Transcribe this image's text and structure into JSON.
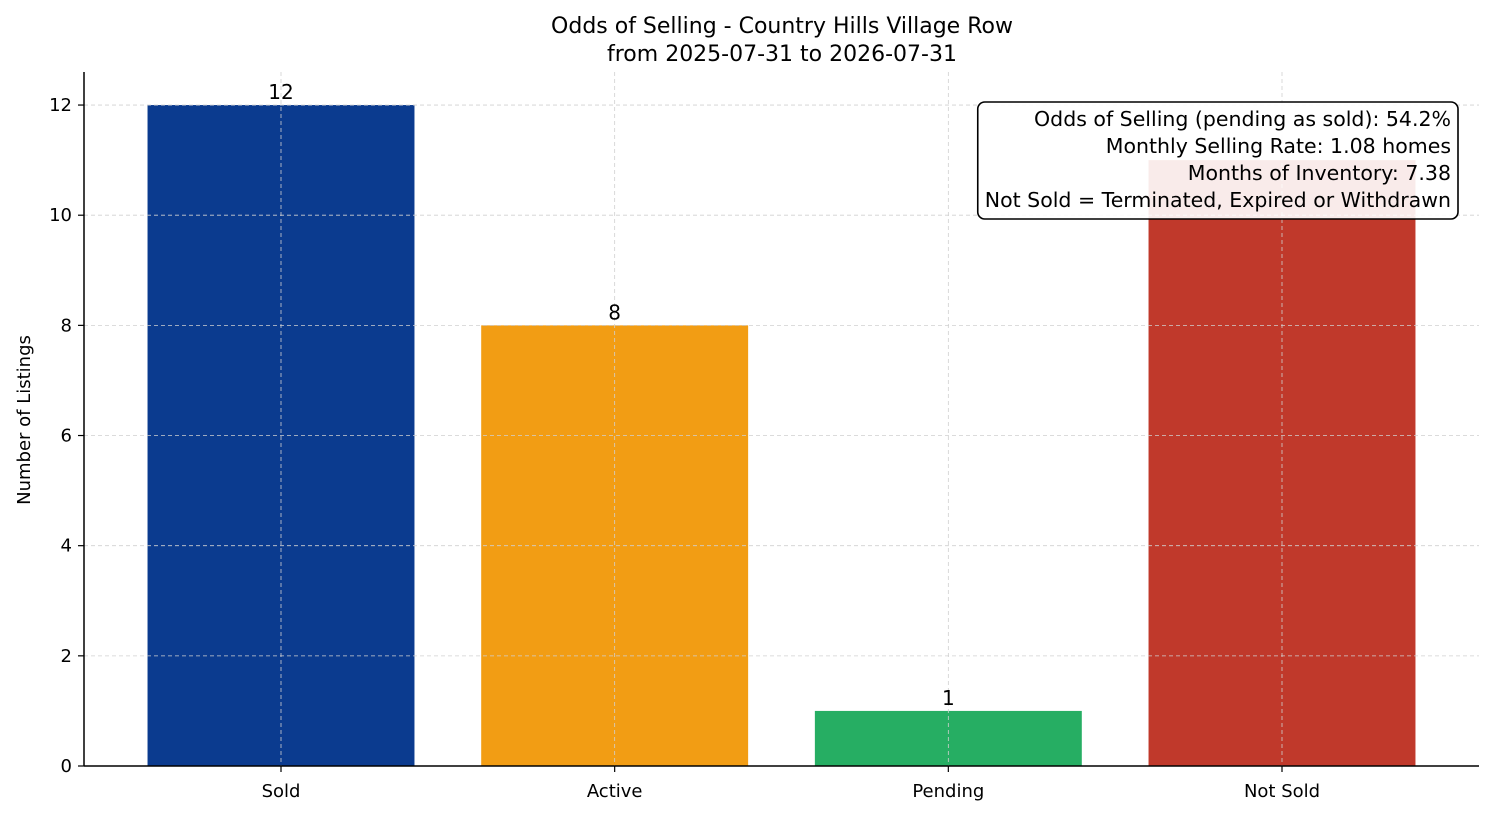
{
  "chart_data": {
    "type": "bar",
    "title": "Odds of Selling - Country Hills Village Row",
    "subtitle": "from 2025-07-31 to 2026-07-31",
    "xlabel": "",
    "ylabel": "Number of Listings",
    "categories": [
      "Sold",
      "Active",
      "Pending",
      "Not Sold"
    ],
    "values": [
      12,
      8,
      1,
      11
    ],
    "data_labels": [
      "12",
      "8",
      "1",
      ""
    ],
    "colors": [
      "#0b3b8f",
      "#f29d14",
      "#26ae63",
      "#c0392b"
    ],
    "ylim": [
      0,
      12.6
    ],
    "yticks": [
      0,
      2,
      4,
      6,
      8,
      10,
      12
    ],
    "grid": true,
    "legend": null,
    "annotation_box": {
      "placement": "top-right",
      "lines": [
        "Odds of Selling (pending as sold): 54.2%",
        "Monthly Selling Rate: 1.08 homes",
        "Months of Inventory: 7.38",
        "Not Sold = Terminated, Expired or Withdrawn"
      ]
    }
  }
}
